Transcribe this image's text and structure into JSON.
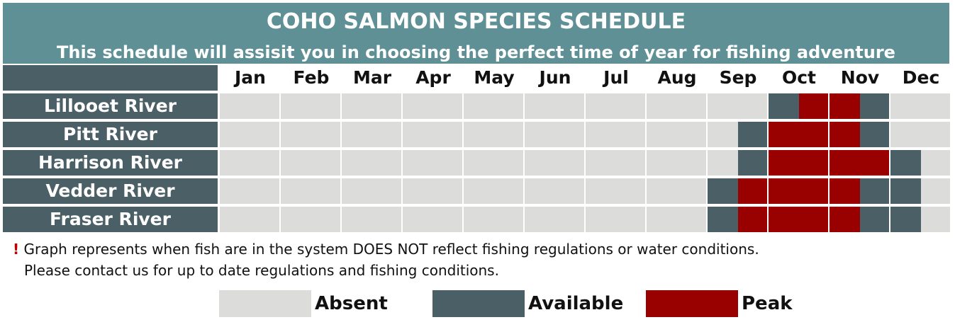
{
  "header": {
    "title": "COHO SALMON SPECIES SCHEDULE",
    "subtitle": "This schedule will assisit you in choosing the perfect time of year for fishing adventure"
  },
  "colors": {
    "absent": "#dcdcdb",
    "available": "#4a5f66",
    "peak": "#990000",
    "header_bg": "#5e9095"
  },
  "chart_data": {
    "type": "heatmap",
    "title": "COHO SALMON SPECIES SCHEDULE",
    "subtitle": "This schedule will assisit you in choosing the perfect time of year for fishing adventure",
    "months": [
      "Jan",
      "Feb",
      "Mar",
      "Apr",
      "May",
      "Jun",
      "Jul",
      "Aug",
      "Sep",
      "Oct",
      "Nov",
      "Dec"
    ],
    "half_month_resolution": true,
    "legend": [
      "Absent",
      "Available",
      "Peak"
    ],
    "rows": [
      {
        "name": "Lillooet River",
        "halves": [
          "A",
          "A",
          "A",
          "A",
          "A",
          "A",
          "A",
          "A",
          "A",
          "A",
          "A",
          "A",
          "A",
          "A",
          "A",
          "A",
          "A",
          "A",
          "V",
          "P",
          "P",
          "V",
          "A",
          "A"
        ]
      },
      {
        "name": "Pitt River",
        "halves": [
          "A",
          "A",
          "A",
          "A",
          "A",
          "A",
          "A",
          "A",
          "A",
          "A",
          "A",
          "A",
          "A",
          "A",
          "A",
          "A",
          "A",
          "V",
          "P",
          "P",
          "P",
          "V",
          "A",
          "A"
        ]
      },
      {
        "name": "Harrison River",
        "halves": [
          "A",
          "A",
          "A",
          "A",
          "A",
          "A",
          "A",
          "A",
          "A",
          "A",
          "A",
          "A",
          "A",
          "A",
          "A",
          "A",
          "A",
          "V",
          "P",
          "P",
          "P",
          "P",
          "V",
          "A"
        ]
      },
      {
        "name": "Vedder River",
        "halves": [
          "A",
          "A",
          "A",
          "A",
          "A",
          "A",
          "A",
          "A",
          "A",
          "A",
          "A",
          "A",
          "A",
          "A",
          "A",
          "A",
          "V",
          "P",
          "P",
          "P",
          "P",
          "V",
          "V",
          "A"
        ]
      },
      {
        "name": "Fraser River",
        "halves": [
          "A",
          "A",
          "A",
          "A",
          "A",
          "A",
          "A",
          "A",
          "A",
          "A",
          "A",
          "A",
          "A",
          "A",
          "A",
          "A",
          "V",
          "P",
          "P",
          "P",
          "P",
          "V",
          "V",
          "A"
        ]
      }
    ]
  },
  "notes": {
    "bang": "!",
    "line1": "Graph represents when fish are in the system DOES NOT reflect fishing regulations or water conditions.",
    "line2": "Please contact us for up to date regulations and fishing conditions."
  },
  "legend": {
    "absent": "Absent",
    "available": "Available",
    "peak": "Peak"
  }
}
